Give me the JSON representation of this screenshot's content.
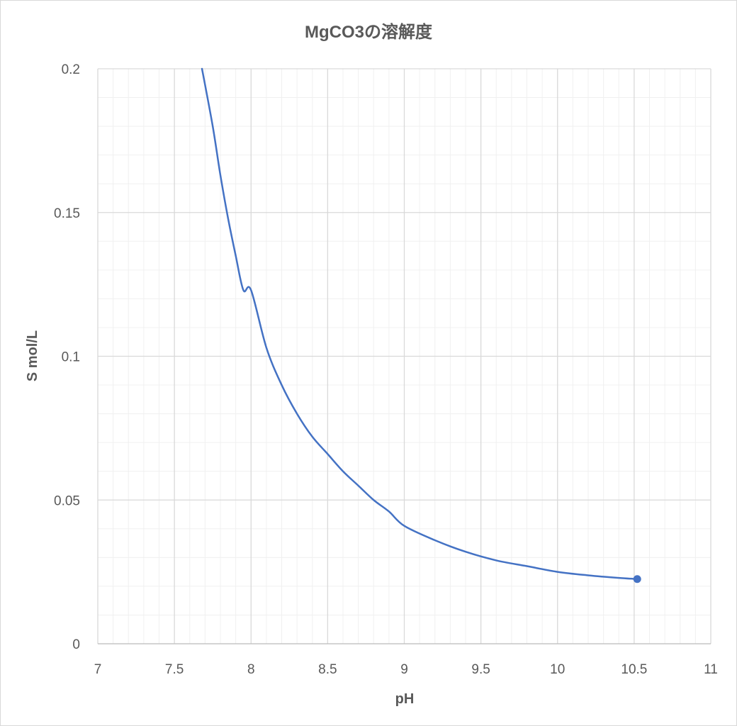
{
  "chart_data": {
    "type": "line",
    "title": "MgCO3の溶解度",
    "xlabel": "pH",
    "ylabel": "S mol/L",
    "xlim": [
      7,
      11
    ],
    "ylim": [
      0,
      0.2
    ],
    "x_ticks": [
      "7",
      "7.5",
      "8",
      "8.5",
      "9",
      "9.5",
      "10",
      "10.5",
      "11"
    ],
    "y_ticks": [
      "0",
      "0.05",
      "0.1",
      "0.15",
      "0.2"
    ],
    "grid": "major and minor",
    "legend": "none",
    "line_color": "#4472c4",
    "series": [
      {
        "x": [
          7.68,
          7.75,
          7.8,
          7.85,
          7.9,
          7.95,
          8.0,
          8.1,
          8.2,
          8.3,
          8.4,
          8.5,
          8.6,
          8.7,
          8.8,
          8.9,
          9.0,
          9.2,
          9.4,
          9.6,
          9.8,
          10.0,
          10.2,
          10.4,
          10.52
        ],
        "y": [
          0.2,
          0.18,
          0.163,
          0.148,
          0.135,
          0.123,
          0.123,
          0.103,
          0.09,
          0.08,
          0.072,
          0.066,
          0.06,
          0.055,
          0.05,
          0.046,
          0.041,
          0.036,
          0.032,
          0.029,
          0.027,
          0.025,
          0.0238,
          0.0229,
          0.0225
        ]
      }
    ],
    "end_marker": {
      "x": 10.52,
      "y": 0.0225
    }
  }
}
